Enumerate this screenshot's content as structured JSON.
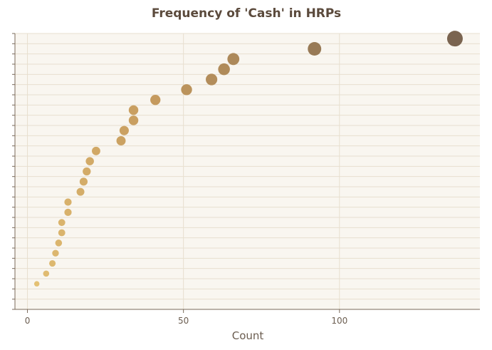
{
  "chart_data": {
    "type": "scatter",
    "title": "Frequency of 'Cash' in HRPs",
    "xlabel": "Count",
    "ylabel": "",
    "xlim": [
      -4,
      145
    ],
    "x_ticks": [
      0,
      50,
      100
    ],
    "y_category_count": 27,
    "grid": true,
    "legend": "none",
    "colors": {
      "plot_background": "#f9f6f0",
      "grid": "#e7dfcf",
      "axis": "#7a6a5a",
      "title": "#5b4a3c",
      "tick_label": "#6b5d50",
      "marker_low": "#f0cf7c",
      "marker_mid": "#c59a5e",
      "marker_high": "#7a6450"
    },
    "points": [
      {
        "rank": 1,
        "x": 137
      },
      {
        "rank": 2,
        "x": 92
      },
      {
        "rank": 3,
        "x": 66
      },
      {
        "rank": 4,
        "x": 63
      },
      {
        "rank": 5,
        "x": 59
      },
      {
        "rank": 6,
        "x": 51
      },
      {
        "rank": 7,
        "x": 41
      },
      {
        "rank": 8,
        "x": 34
      },
      {
        "rank": 9,
        "x": 34
      },
      {
        "rank": 10,
        "x": 31
      },
      {
        "rank": 11,
        "x": 30
      },
      {
        "rank": 12,
        "x": 22
      },
      {
        "rank": 13,
        "x": 20
      },
      {
        "rank": 14,
        "x": 19
      },
      {
        "rank": 15,
        "x": 18
      },
      {
        "rank": 16,
        "x": 17
      },
      {
        "rank": 17,
        "x": 13
      },
      {
        "rank": 18,
        "x": 13
      },
      {
        "rank": 19,
        "x": 11
      },
      {
        "rank": 20,
        "x": 11
      },
      {
        "rank": 21,
        "x": 10
      },
      {
        "rank": 22,
        "x": 9
      },
      {
        "rank": 23,
        "x": 8
      },
      {
        "rank": 24,
        "x": 6
      },
      {
        "rank": 25,
        "x": 3
      }
    ]
  }
}
